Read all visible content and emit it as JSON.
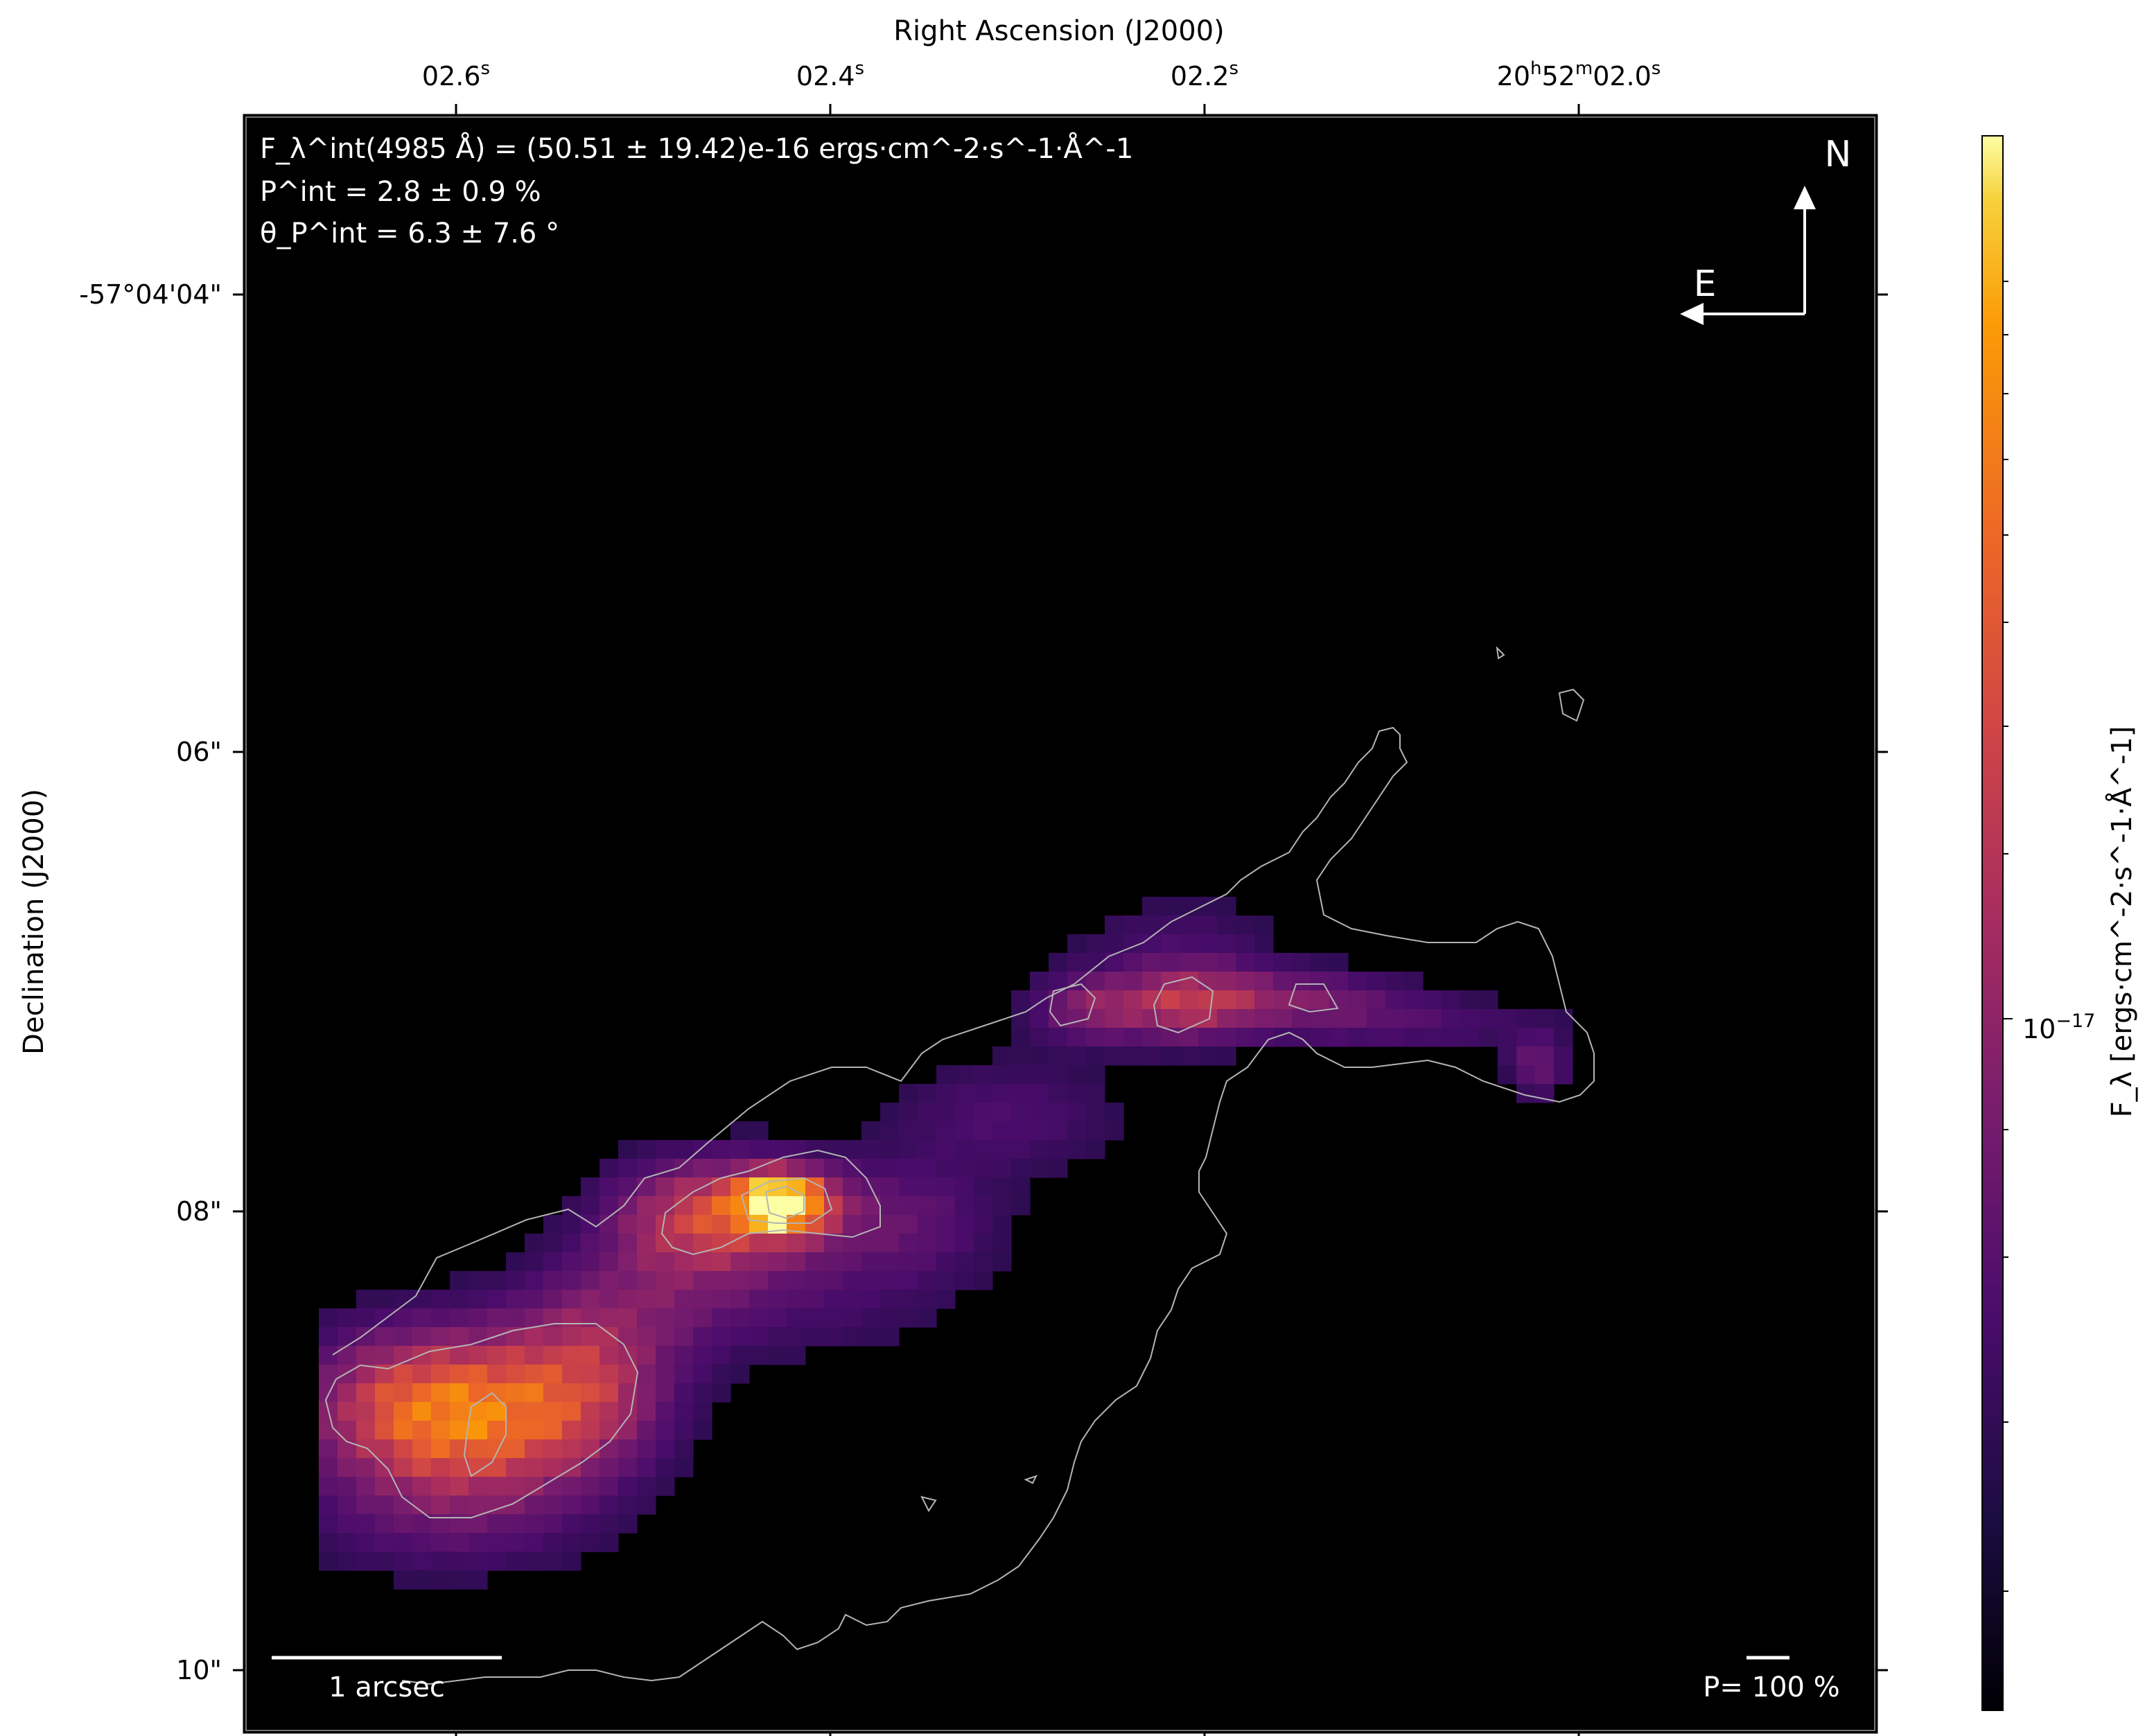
{
  "chart_data": {
    "type": "heatmap",
    "title": "",
    "xlabel": "Right Ascension (J2000)",
    "ylabel": "Declination (J2000)",
    "x_ticks": [
      {
        "label": "02.6",
        "sup": "s"
      },
      {
        "label": "02.4",
        "sup": "s"
      },
      {
        "label": "02.2",
        "sup": "s"
      },
      {
        "label": "20h52m02.0s",
        "parts": [
          "20",
          "h",
          "52",
          "m",
          "02.0",
          "s"
        ]
      }
    ],
    "y_ticks": [
      "-57°04'04\"",
      "06\"",
      "08\"",
      "10\""
    ],
    "colorbar": {
      "label": "F_λ [ergs·cm^-2·s^-1·Å^-1]",
      "tick_label": "10^-17",
      "scale": "log",
      "colormap": "inferno"
    },
    "annotations": {
      "flux": "F_λ^int(4985 Å) = (50.51 ± 19.42)e-16 ergs·cm^-2·s^-1·Å^-1",
      "polarization": "P^int = 2.8 ± 0.9 %",
      "angle": "θ_P^int = 6.3 ± 7.6 °"
    },
    "compass": {
      "north": "N",
      "east": "E"
    },
    "scalebar_label": "1 arcsec",
    "pol_scale_label": "P= 100 %",
    "grid": false,
    "legend": "none",
    "emission_regions": [
      {
        "name": "peak",
        "level": 1.0
      },
      {
        "name": "lower-left lobe",
        "level": 0.55
      },
      {
        "name": "upper-right streak",
        "level": 0.4
      },
      {
        "name": "diffuse bridge",
        "level": 0.25
      }
    ]
  }
}
